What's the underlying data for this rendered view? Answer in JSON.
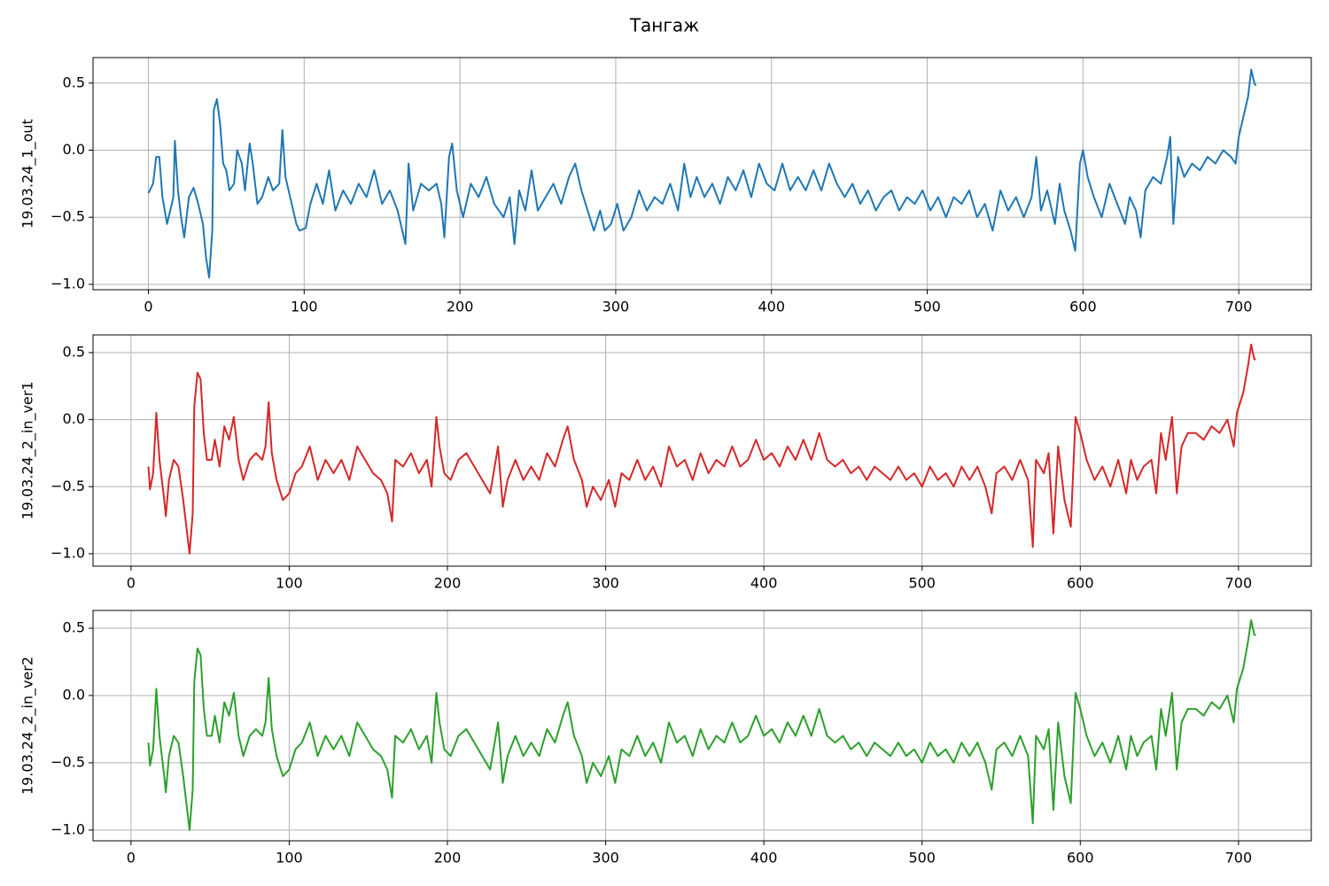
{
  "title": "Тангаж",
  "chart_data": [
    {
      "type": "line",
      "ylabel": "19.03.24_1_out",
      "color": "#1f77b4",
      "grid": true,
      "xlim": [
        -35.55,
        746.55
      ],
      "xticks": [
        0,
        100,
        200,
        300,
        400,
        500,
        600,
        700
      ],
      "ylim": [
        -1.04,
        0.69
      ],
      "yticks": [
        {
          "value": -1.0,
          "label": "−1.0"
        },
        {
          "value": -0.5,
          "label": "−0.5"
        },
        {
          "value": 0.0,
          "label": "0.0"
        },
        0.5
      ],
      "x": [
        0,
        3,
        5,
        7,
        9,
        12,
        16,
        17,
        19,
        21,
        23,
        26,
        29,
        32,
        35,
        37,
        39,
        41,
        42,
        44,
        46,
        48,
        50,
        52,
        55,
        57,
        60,
        62,
        65,
        67,
        70,
        73,
        77,
        80,
        84,
        86,
        88,
        92,
        95,
        97,
        101,
        104,
        108,
        112,
        116,
        120,
        125,
        130,
        135,
        140,
        145,
        150,
        155,
        160,
        163,
        165,
        167,
        170,
        175,
        180,
        185,
        188,
        190,
        193,
        195,
        198,
        202,
        207,
        212,
        217,
        222,
        228,
        232,
        235,
        238,
        242,
        246,
        250,
        255,
        260,
        265,
        270,
        274,
        278,
        282,
        286,
        290,
        293,
        297,
        301,
        305,
        310,
        315,
        320,
        325,
        330,
        335,
        340,
        344,
        348,
        352,
        357,
        362,
        367,
        372,
        377,
        382,
        387,
        392,
        397,
        402,
        407,
        412,
        417,
        422,
        427,
        432,
        437,
        442,
        447,
        452,
        457,
        462,
        467,
        472,
        477,
        482,
        487,
        492,
        497,
        502,
        507,
        512,
        517,
        522,
        527,
        532,
        537,
        542,
        547,
        552,
        557,
        562,
        567,
        570,
        573,
        577,
        582,
        585,
        588,
        592,
        595,
        598,
        600,
        603,
        607,
        612,
        617,
        622,
        627,
        630,
        634,
        637,
        640,
        645,
        650,
        654,
        656,
        658,
        661,
        665,
        670,
        675,
        680,
        685,
        690,
        695,
        698,
        700,
        703,
        706,
        708,
        710,
        711
      ],
      "values": [
        -0.32,
        -0.25,
        -0.05,
        -0.05,
        -0.35,
        -0.55,
        -0.35,
        0.07,
        -0.3,
        -0.5,
        -0.65,
        -0.35,
        -0.28,
        -0.4,
        -0.55,
        -0.8,
        -0.95,
        -0.6,
        0.3,
        0.38,
        0.2,
        -0.1,
        -0.15,
        -0.3,
        -0.25,
        0.0,
        -0.1,
        -0.3,
        0.05,
        -0.1,
        -0.4,
        -0.35,
        -0.2,
        -0.3,
        -0.25,
        0.15,
        -0.2,
        -0.4,
        -0.55,
        -0.6,
        -0.58,
        -0.4,
        -0.25,
        -0.4,
        -0.15,
        -0.45,
        -0.3,
        -0.4,
        -0.25,
        -0.35,
        -0.15,
        -0.4,
        -0.3,
        -0.45,
        -0.6,
        -0.7,
        -0.1,
        -0.45,
        -0.25,
        -0.3,
        -0.25,
        -0.4,
        -0.65,
        -0.05,
        0.05,
        -0.3,
        -0.5,
        -0.25,
        -0.35,
        -0.2,
        -0.4,
        -0.5,
        -0.35,
        -0.7,
        -0.3,
        -0.45,
        -0.15,
        -0.45,
        -0.35,
        -0.25,
        -0.4,
        -0.2,
        -0.1,
        -0.3,
        -0.45,
        -0.6,
        -0.45,
        -0.6,
        -0.55,
        -0.4,
        -0.6,
        -0.5,
        -0.3,
        -0.45,
        -0.35,
        -0.4,
        -0.25,
        -0.45,
        -0.1,
        -0.35,
        -0.2,
        -0.35,
        -0.25,
        -0.4,
        -0.2,
        -0.3,
        -0.15,
        -0.35,
        -0.1,
        -0.25,
        -0.3,
        -0.1,
        -0.3,
        -0.2,
        -0.3,
        -0.15,
        -0.3,
        -0.1,
        -0.25,
        -0.35,
        -0.25,
        -0.4,
        -0.3,
        -0.45,
        -0.35,
        -0.3,
        -0.45,
        -0.35,
        -0.4,
        -0.3,
        -0.45,
        -0.35,
        -0.5,
        -0.35,
        -0.4,
        -0.3,
        -0.5,
        -0.4,
        -0.6,
        -0.3,
        -0.45,
        -0.35,
        -0.5,
        -0.35,
        -0.05,
        -0.45,
        -0.3,
        -0.55,
        -0.25,
        -0.45,
        -0.6,
        -0.75,
        -0.1,
        0.0,
        -0.2,
        -0.35,
        -0.5,
        -0.25,
        -0.4,
        -0.55,
        -0.35,
        -0.45,
        -0.65,
        -0.3,
        -0.2,
        -0.25,
        -0.05,
        0.1,
        -0.55,
        -0.05,
        -0.2,
        -0.1,
        -0.15,
        -0.05,
        -0.1,
        0.0,
        -0.05,
        -0.1,
        0.1,
        0.25,
        0.4,
        0.6,
        0.5,
        0.48
      ]
    },
    {
      "type": "line",
      "ylabel": "19.03.24_2_in_ver1",
      "color": "#d62728",
      "grid": true,
      "xlim": [
        -24,
        746
      ],
      "xticks": [
        0,
        100,
        200,
        300,
        400,
        500,
        600,
        700
      ],
      "ylim": [
        -1.093,
        0.632
      ],
      "yticks": [
        {
          "value": -1.0,
          "label": "−1.0"
        },
        {
          "value": -0.5,
          "label": "−0.5"
        },
        {
          "value": 0.0,
          "label": "0.0"
        },
        0.5
      ],
      "x": [
        11,
        12,
        14,
        16,
        18,
        21,
        22,
        24,
        27,
        30,
        33,
        36,
        37,
        39,
        40,
        42,
        44,
        46,
        48,
        51,
        53,
        56,
        59,
        62,
        65,
        68,
        71,
        75,
        79,
        83,
        85,
        87,
        89,
        92,
        96,
        100,
        104,
        108,
        113,
        118,
        123,
        128,
        133,
        138,
        143,
        148,
        153,
        158,
        162,
        165,
        167,
        172,
        177,
        182,
        187,
        190,
        193,
        195,
        198,
        202,
        207,
        212,
        217,
        222,
        227,
        232,
        235,
        238,
        243,
        248,
        253,
        258,
        263,
        268,
        273,
        276,
        280,
        285,
        288,
        292,
        297,
        302,
        306,
        310,
        315,
        320,
        325,
        330,
        335,
        340,
        345,
        350,
        355,
        360,
        365,
        370,
        375,
        380,
        385,
        390,
        395,
        400,
        405,
        410,
        415,
        420,
        425,
        430,
        435,
        440,
        445,
        450,
        455,
        460,
        465,
        470,
        475,
        480,
        485,
        490,
        495,
        500,
        505,
        510,
        515,
        520,
        525,
        530,
        535,
        540,
        544,
        547,
        552,
        557,
        562,
        567,
        570,
        572,
        577,
        580,
        583,
        586,
        590,
        594,
        597,
        600,
        604,
        609,
        614,
        619,
        624,
        629,
        632,
        636,
        640,
        645,
        648,
        651,
        654,
        658,
        661,
        664,
        668,
        673,
        678,
        683,
        688,
        693,
        697,
        699,
        703,
        706,
        708,
        710,
        711
      ],
      "values": [
        -0.35,
        -0.52,
        -0.4,
        0.05,
        -0.3,
        -0.6,
        -0.72,
        -0.45,
        -0.3,
        -0.35,
        -0.6,
        -0.9,
        -1.0,
        -0.7,
        0.1,
        0.35,
        0.3,
        -0.1,
        -0.3,
        -0.3,
        -0.15,
        -0.35,
        -0.05,
        -0.15,
        0.02,
        -0.3,
        -0.45,
        -0.3,
        -0.25,
        -0.3,
        -0.2,
        0.13,
        -0.25,
        -0.45,
        -0.6,
        -0.55,
        -0.4,
        -0.35,
        -0.2,
        -0.45,
        -0.3,
        -0.4,
        -0.3,
        -0.45,
        -0.2,
        -0.3,
        -0.4,
        -0.45,
        -0.55,
        -0.76,
        -0.3,
        -0.35,
        -0.25,
        -0.4,
        -0.3,
        -0.5,
        0.02,
        -0.2,
        -0.4,
        -0.45,
        -0.3,
        -0.25,
        -0.35,
        -0.45,
        -0.55,
        -0.2,
        -0.65,
        -0.45,
        -0.3,
        -0.45,
        -0.35,
        -0.45,
        -0.25,
        -0.35,
        -0.15,
        -0.05,
        -0.3,
        -0.45,
        -0.65,
        -0.5,
        -0.6,
        -0.45,
        -0.65,
        -0.4,
        -0.45,
        -0.3,
        -0.45,
        -0.35,
        -0.5,
        -0.2,
        -0.35,
        -0.3,
        -0.45,
        -0.25,
        -0.4,
        -0.3,
        -0.35,
        -0.2,
        -0.35,
        -0.3,
        -0.15,
        -0.3,
        -0.25,
        -0.35,
        -0.2,
        -0.3,
        -0.15,
        -0.3,
        -0.1,
        -0.3,
        -0.35,
        -0.3,
        -0.4,
        -0.35,
        -0.45,
        -0.35,
        -0.4,
        -0.45,
        -0.35,
        -0.45,
        -0.4,
        -0.5,
        -0.35,
        -0.45,
        -0.4,
        -0.5,
        -0.35,
        -0.45,
        -0.35,
        -0.5,
        -0.7,
        -0.4,
        -0.35,
        -0.45,
        -0.3,
        -0.45,
        -0.95,
        -0.3,
        -0.4,
        -0.25,
        -0.85,
        -0.2,
        -0.6,
        -0.8,
        0.02,
        -0.1,
        -0.3,
        -0.45,
        -0.35,
        -0.5,
        -0.3,
        -0.55,
        -0.3,
        -0.45,
        -0.35,
        -0.3,
        -0.55,
        -0.1,
        -0.3,
        0.02,
        -0.55,
        -0.2,
        -0.1,
        -0.1,
        -0.15,
        -0.05,
        -0.1,
        0.0,
        -0.2,
        0.05,
        0.2,
        0.4,
        0.56,
        0.45,
        0.45
      ]
    },
    {
      "type": "line",
      "ylabel": "19.03.24_2_in_ver2",
      "color": "#2ca02c",
      "grid": true,
      "xlim": [
        -24,
        746
      ],
      "xticks": [
        0,
        100,
        200,
        300,
        400,
        500,
        600,
        700
      ],
      "ylim": [
        -1.08,
        0.632
      ],
      "yticks": [
        {
          "value": -1.0,
          "label": "−1.0"
        },
        {
          "value": -0.5,
          "label": "−0.5"
        },
        {
          "value": 0.0,
          "label": "0.0"
        },
        0.5
      ],
      "x": [
        11,
        12,
        14,
        16,
        18,
        21,
        22,
        24,
        27,
        30,
        33,
        36,
        37,
        39,
        40,
        42,
        44,
        46,
        48,
        51,
        53,
        56,
        59,
        62,
        65,
        68,
        71,
        75,
        79,
        83,
        85,
        87,
        89,
        92,
        96,
        100,
        104,
        108,
        113,
        118,
        123,
        128,
        133,
        138,
        143,
        148,
        153,
        158,
        162,
        165,
        167,
        172,
        177,
        182,
        187,
        190,
        193,
        195,
        198,
        202,
        207,
        212,
        217,
        222,
        227,
        232,
        235,
        238,
        243,
        248,
        253,
        258,
        263,
        268,
        273,
        276,
        280,
        285,
        288,
        292,
        297,
        302,
        306,
        310,
        315,
        320,
        325,
        330,
        335,
        340,
        345,
        350,
        355,
        360,
        365,
        370,
        375,
        380,
        385,
        390,
        395,
        400,
        405,
        410,
        415,
        420,
        425,
        430,
        435,
        440,
        445,
        450,
        455,
        460,
        465,
        470,
        475,
        480,
        485,
        490,
        495,
        500,
        505,
        510,
        515,
        520,
        525,
        530,
        535,
        540,
        544,
        547,
        552,
        557,
        562,
        567,
        570,
        572,
        577,
        580,
        583,
        586,
        590,
        594,
        597,
        600,
        604,
        609,
        614,
        619,
        624,
        629,
        632,
        636,
        640,
        645,
        648,
        651,
        654,
        658,
        661,
        664,
        668,
        673,
        678,
        683,
        688,
        693,
        697,
        699,
        703,
        706,
        708,
        710,
        711
      ],
      "values": [
        -0.35,
        -0.52,
        -0.4,
        0.05,
        -0.3,
        -0.6,
        -0.72,
        -0.45,
        -0.3,
        -0.35,
        -0.6,
        -0.9,
        -1.0,
        -0.7,
        0.1,
        0.35,
        0.3,
        -0.1,
        -0.3,
        -0.3,
        -0.15,
        -0.35,
        -0.05,
        -0.15,
        0.02,
        -0.3,
        -0.45,
        -0.3,
        -0.25,
        -0.3,
        -0.2,
        0.13,
        -0.25,
        -0.45,
        -0.6,
        -0.55,
        -0.4,
        -0.35,
        -0.2,
        -0.45,
        -0.3,
        -0.4,
        -0.3,
        -0.45,
        -0.2,
        -0.3,
        -0.4,
        -0.45,
        -0.55,
        -0.76,
        -0.3,
        -0.35,
        -0.25,
        -0.4,
        -0.3,
        -0.5,
        0.02,
        -0.2,
        -0.4,
        -0.45,
        -0.3,
        -0.25,
        -0.35,
        -0.45,
        -0.55,
        -0.2,
        -0.65,
        -0.45,
        -0.3,
        -0.45,
        -0.35,
        -0.45,
        -0.25,
        -0.35,
        -0.15,
        -0.05,
        -0.3,
        -0.45,
        -0.65,
        -0.5,
        -0.6,
        -0.45,
        -0.65,
        -0.4,
        -0.45,
        -0.3,
        -0.45,
        -0.35,
        -0.5,
        -0.2,
        -0.35,
        -0.3,
        -0.45,
        -0.25,
        -0.4,
        -0.3,
        -0.35,
        -0.2,
        -0.35,
        -0.3,
        -0.15,
        -0.3,
        -0.25,
        -0.35,
        -0.2,
        -0.3,
        -0.15,
        -0.3,
        -0.1,
        -0.3,
        -0.35,
        -0.3,
        -0.4,
        -0.35,
        -0.45,
        -0.35,
        -0.4,
        -0.45,
        -0.35,
        -0.45,
        -0.4,
        -0.5,
        -0.35,
        -0.45,
        -0.4,
        -0.5,
        -0.35,
        -0.45,
        -0.35,
        -0.5,
        -0.7,
        -0.4,
        -0.35,
        -0.45,
        -0.3,
        -0.45,
        -0.95,
        -0.3,
        -0.4,
        -0.25,
        -0.85,
        -0.2,
        -0.6,
        -0.8,
        0.02,
        -0.1,
        -0.3,
        -0.45,
        -0.35,
        -0.5,
        -0.3,
        -0.55,
        -0.3,
        -0.45,
        -0.35,
        -0.3,
        -0.55,
        -0.1,
        -0.3,
        0.02,
        -0.55,
        -0.2,
        -0.1,
        -0.1,
        -0.15,
        -0.05,
        -0.1,
        0.0,
        -0.2,
        0.05,
        0.2,
        0.4,
        0.56,
        0.45,
        0.45
      ]
    }
  ]
}
